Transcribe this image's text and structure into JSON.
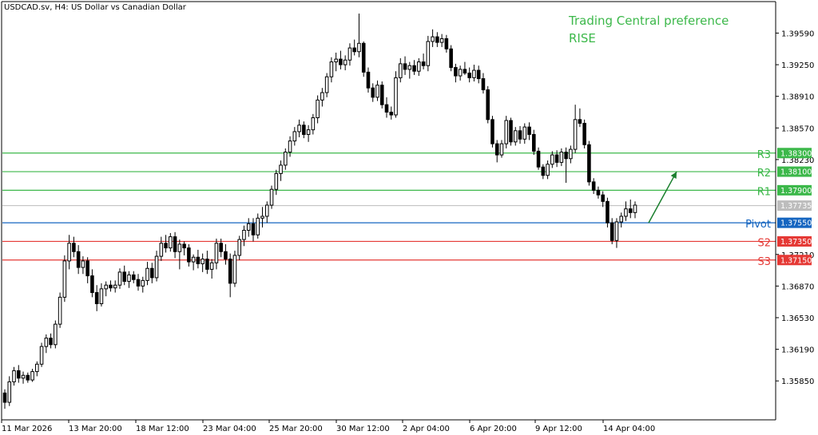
{
  "header": {
    "symbol_title": "USDCAD.sv, H4:  US Dollar vs Canadian Dollar",
    "preference_line1": "Trading Central preference",
    "preference_line2": "RISE"
  },
  "colors": {
    "resistance": "#3cb84a",
    "pivot": "#1565c0",
    "support": "#e53935",
    "current_price": "#bdbdbd",
    "arrow": "#1a7f2e",
    "candle": "#000000",
    "axis": "#000000"
  },
  "chart_data": {
    "type": "candlestick",
    "title": "USDCAD.sv, H4:  US Dollar vs Canadian Dollar",
    "ylim": [
      1.3544,
      1.3992
    ],
    "y_ticks": [
      "1.39590",
      "1.39250",
      "1.38910",
      "1.38570",
      "1.38230",
      "1.37210",
      "1.36870",
      "1.36530",
      "1.36190",
      "1.35850"
    ],
    "y_tick_values": [
      1.3959,
      1.3925,
      1.3891,
      1.3857,
      1.3823,
      1.3721,
      1.3687,
      1.3653,
      1.3619,
      1.3585
    ],
    "x_ticks": [
      "11 Mar 2026",
      "13 Mar 20:00",
      "18 Mar 12:00",
      "23 Mar 04:00",
      "25 Mar 20:00",
      "30 Mar 12:00",
      "2 Apr 04:00",
      "6 Apr 20:00",
      "9 Apr 12:00",
      "14 Apr 04:00"
    ],
    "levels": [
      {
        "name": "R3",
        "value": 1.383,
        "label": "1.38300",
        "kind": "resistance"
      },
      {
        "name": "R2",
        "value": 1.381,
        "label": "1.38100",
        "kind": "resistance"
      },
      {
        "name": "R1",
        "value": 1.379,
        "label": "1.37900",
        "kind": "resistance"
      },
      {
        "name": "Pivot",
        "value": 1.3755,
        "label": "1.37550",
        "kind": "pivot"
      },
      {
        "name": "S2",
        "value": 1.3735,
        "label": "1.37350",
        "kind": "support"
      },
      {
        "name": "S3",
        "value": 1.3715,
        "label": "1.37150",
        "kind": "support"
      }
    ],
    "current_price": {
      "value": 1.37735,
      "label": "1.37735"
    },
    "forecast_arrow": {
      "from": 1.3755,
      "to": 1.381,
      "direction": "up"
    },
    "candles": [
      [
        1.3572,
        1.3576,
        1.3555,
        1.3562
      ],
      [
        1.3562,
        1.359,
        1.3558,
        1.3584
      ],
      [
        1.3584,
        1.36,
        1.358,
        1.3596
      ],
      [
        1.3596,
        1.3602,
        1.3583,
        1.3588
      ],
      [
        1.3588,
        1.3595,
        1.3582,
        1.3591
      ],
      [
        1.3591,
        1.3594,
        1.3583,
        1.3586
      ],
      [
        1.3586,
        1.3598,
        1.3584,
        1.3595
      ],
      [
        1.3595,
        1.3606,
        1.359,
        1.3603
      ],
      [
        1.3603,
        1.3626,
        1.36,
        1.3622
      ],
      [
        1.3622,
        1.3635,
        1.3615,
        1.3631
      ],
      [
        1.3631,
        1.3636,
        1.362,
        1.3624
      ],
      [
        1.3624,
        1.365,
        1.362,
        1.3646
      ],
      [
        1.3646,
        1.368,
        1.3642,
        1.3675
      ],
      [
        1.3675,
        1.372,
        1.367,
        1.3714
      ],
      [
        1.3714,
        1.3742,
        1.3705,
        1.3733
      ],
      [
        1.3733,
        1.374,
        1.3718,
        1.3724
      ],
      [
        1.3724,
        1.3731,
        1.37,
        1.3707
      ],
      [
        1.3707,
        1.3719,
        1.37,
        1.3714
      ],
      [
        1.3714,
        1.3718,
        1.369,
        1.3698
      ],
      [
        1.3698,
        1.3705,
        1.3675,
        1.368
      ],
      [
        1.368,
        1.3688,
        1.366,
        1.3668
      ],
      [
        1.3668,
        1.369,
        1.3665,
        1.3684
      ],
      [
        1.3684,
        1.3692,
        1.3676,
        1.3688
      ],
      [
        1.3688,
        1.3693,
        1.3681,
        1.3685
      ],
      [
        1.3685,
        1.3693,
        1.368,
        1.3688
      ],
      [
        1.3688,
        1.3706,
        1.3684,
        1.3702
      ],
      [
        1.3702,
        1.3709,
        1.3688,
        1.3692
      ],
      [
        1.3692,
        1.3703,
        1.3685,
        1.3699
      ],
      [
        1.3699,
        1.3703,
        1.369,
        1.3694
      ],
      [
        1.3694,
        1.37,
        1.3682,
        1.3687
      ],
      [
        1.3687,
        1.3697,
        1.368,
        1.3693
      ],
      [
        1.3693,
        1.3713,
        1.3688,
        1.3706
      ],
      [
        1.3706,
        1.3712,
        1.369,
        1.3696
      ],
      [
        1.3696,
        1.3725,
        1.3692,
        1.3719
      ],
      [
        1.3719,
        1.374,
        1.3714,
        1.3733
      ],
      [
        1.3733,
        1.3742,
        1.3723,
        1.3728
      ],
      [
        1.3728,
        1.3744,
        1.3724,
        1.374
      ],
      [
        1.374,
        1.3745,
        1.3717,
        1.3724
      ],
      [
        1.3724,
        1.3737,
        1.3705,
        1.3732
      ],
      [
        1.3732,
        1.3735,
        1.372,
        1.3728
      ],
      [
        1.3728,
        1.3732,
        1.3708,
        1.3713
      ],
      [
        1.3713,
        1.3721,
        1.3704,
        1.3718
      ],
      [
        1.3718,
        1.3726,
        1.3706,
        1.3711
      ],
      [
        1.3711,
        1.3722,
        1.3702,
        1.3716
      ],
      [
        1.3716,
        1.3725,
        1.37,
        1.3705
      ],
      [
        1.3705,
        1.3716,
        1.3695,
        1.3712
      ],
      [
        1.3712,
        1.3738,
        1.3705,
        1.3733
      ],
      [
        1.3733,
        1.3738,
        1.3718,
        1.3724
      ],
      [
        1.3724,
        1.3732,
        1.371,
        1.3716
      ],
      [
        1.3716,
        1.3722,
        1.3675,
        1.369
      ],
      [
        1.369,
        1.3725,
        1.3686,
        1.372
      ],
      [
        1.372,
        1.3741,
        1.3715,
        1.3737
      ],
      [
        1.3737,
        1.3752,
        1.373,
        1.3747
      ],
      [
        1.3747,
        1.376,
        1.374,
        1.3754
      ],
      [
        1.3754,
        1.376,
        1.3735,
        1.3742
      ],
      [
        1.3742,
        1.3765,
        1.3738,
        1.376
      ],
      [
        1.376,
        1.3772,
        1.375,
        1.3762
      ],
      [
        1.3762,
        1.3778,
        1.3755,
        1.3774
      ],
      [
        1.3774,
        1.3795,
        1.377,
        1.3791
      ],
      [
        1.3791,
        1.3812,
        1.3785,
        1.3808
      ],
      [
        1.3808,
        1.3822,
        1.38,
        1.3817
      ],
      [
        1.3817,
        1.3835,
        1.3812,
        1.3831
      ],
      [
        1.3831,
        1.3848,
        1.3826,
        1.3843
      ],
      [
        1.3843,
        1.3858,
        1.3838,
        1.3853
      ],
      [
        1.3853,
        1.3866,
        1.3847,
        1.386
      ],
      [
        1.386,
        1.3864,
        1.3846,
        1.385
      ],
      [
        1.385,
        1.386,
        1.3842,
        1.3855
      ],
      [
        1.3855,
        1.3872,
        1.385,
        1.3868
      ],
      [
        1.3868,
        1.3892,
        1.3862,
        1.3887
      ],
      [
        1.3887,
        1.39,
        1.388,
        1.3895
      ],
      [
        1.3895,
        1.3916,
        1.389,
        1.3912
      ],
      [
        1.3912,
        1.3933,
        1.3906,
        1.3928
      ],
      [
        1.3928,
        1.3938,
        1.3918,
        1.3931
      ],
      [
        1.3931,
        1.394,
        1.392,
        1.3925
      ],
      [
        1.3925,
        1.3935,
        1.3919,
        1.393
      ],
      [
        1.393,
        1.3948,
        1.3924,
        1.3943
      ],
      [
        1.3943,
        1.3952,
        1.3935,
        1.3939
      ],
      [
        1.3939,
        1.398,
        1.3933,
        1.3948
      ],
      [
        1.3948,
        1.395,
        1.3912,
        1.3917
      ],
      [
        1.3917,
        1.3922,
        1.3895,
        1.39
      ],
      [
        1.39,
        1.3905,
        1.3885,
        1.389
      ],
      [
        1.389,
        1.3908,
        1.3886,
        1.3903
      ],
      [
        1.3903,
        1.3907,
        1.3878,
        1.3882
      ],
      [
        1.3882,
        1.389,
        1.3868,
        1.3874
      ],
      [
        1.3874,
        1.388,
        1.3866,
        1.3871
      ],
      [
        1.3871,
        1.3918,
        1.3868,
        1.3911
      ],
      [
        1.3911,
        1.3932,
        1.3906,
        1.3926
      ],
      [
        1.3926,
        1.3934,
        1.3914,
        1.392
      ],
      [
        1.392,
        1.3928,
        1.391,
        1.3924
      ],
      [
        1.3924,
        1.393,
        1.3914,
        1.3918
      ],
      [
        1.3918,
        1.3932,
        1.3913,
        1.3928
      ],
      [
        1.3928,
        1.3937,
        1.392,
        1.3924
      ],
      [
        1.3924,
        1.3956,
        1.3918,
        1.395
      ],
      [
        1.395,
        1.3963,
        1.3944,
        1.3955
      ],
      [
        1.3955,
        1.396,
        1.3944,
        1.3949
      ],
      [
        1.3949,
        1.3958,
        1.3944,
        1.3953
      ],
      [
        1.3953,
        1.3957,
        1.3938,
        1.3942
      ],
      [
        1.3942,
        1.3946,
        1.3918,
        1.3922
      ],
      [
        1.3922,
        1.3926,
        1.3906,
        1.3913
      ],
      [
        1.3913,
        1.3924,
        1.3908,
        1.392
      ],
      [
        1.392,
        1.3928,
        1.3914,
        1.3916
      ],
      [
        1.3916,
        1.3922,
        1.3906,
        1.3911
      ],
      [
        1.3911,
        1.3925,
        1.3907,
        1.3919
      ],
      [
        1.3919,
        1.3924,
        1.3905,
        1.391
      ],
      [
        1.391,
        1.3916,
        1.3894,
        1.3898
      ],
      [
        1.3898,
        1.3902,
        1.3862,
        1.3866
      ],
      [
        1.3866,
        1.387,
        1.3836,
        1.384
      ],
      [
        1.384,
        1.3844,
        1.382,
        1.3828
      ],
      [
        1.3828,
        1.3844,
        1.3825,
        1.384
      ],
      [
        1.384,
        1.387,
        1.3835,
        1.3865
      ],
      [
        1.3865,
        1.3868,
        1.3838,
        1.3842
      ],
      [
        1.3842,
        1.3858,
        1.3838,
        1.3854
      ],
      [
        1.3854,
        1.3859,
        1.384,
        1.3845
      ],
      [
        1.3845,
        1.3862,
        1.384,
        1.3858
      ],
      [
        1.3858,
        1.3863,
        1.3844,
        1.385
      ],
      [
        1.385,
        1.3855,
        1.3828,
        1.3832
      ],
      [
        1.3832,
        1.3836,
        1.3812,
        1.3815
      ],
      [
        1.3815,
        1.3818,
        1.3802,
        1.3806
      ],
      [
        1.3806,
        1.3822,
        1.3802,
        1.3818
      ],
      [
        1.3818,
        1.3832,
        1.3814,
        1.3828
      ],
      [
        1.3828,
        1.3833,
        1.3815,
        1.382
      ],
      [
        1.382,
        1.3835,
        1.3816,
        1.3831
      ],
      [
        1.3831,
        1.3836,
        1.3798,
        1.3824
      ],
      [
        1.3824,
        1.3838,
        1.3819,
        1.3834
      ],
      [
        1.3834,
        1.3882,
        1.383,
        1.3866
      ],
      [
        1.3866,
        1.3878,
        1.3858,
        1.3862
      ],
      [
        1.3862,
        1.3866,
        1.3835,
        1.3839
      ],
      [
        1.3839,
        1.3843,
        1.3795,
        1.3799
      ],
      [
        1.3799,
        1.3803,
        1.3786,
        1.379
      ],
      [
        1.379,
        1.3794,
        1.3781,
        1.3785
      ],
      [
        1.3785,
        1.3789,
        1.3772,
        1.3778
      ],
      [
        1.3778,
        1.3782,
        1.375,
        1.3755
      ],
      [
        1.3755,
        1.376,
        1.3732,
        1.3736
      ],
      [
        1.3736,
        1.376,
        1.3728,
        1.3756
      ],
      [
        1.3756,
        1.3766,
        1.375,
        1.3762
      ],
      [
        1.3762,
        1.3778,
        1.3757,
        1.377
      ],
      [
        1.377,
        1.378,
        1.376,
        1.3766
      ],
      [
        1.3766,
        1.3778,
        1.376,
        1.3774
      ]
    ]
  }
}
